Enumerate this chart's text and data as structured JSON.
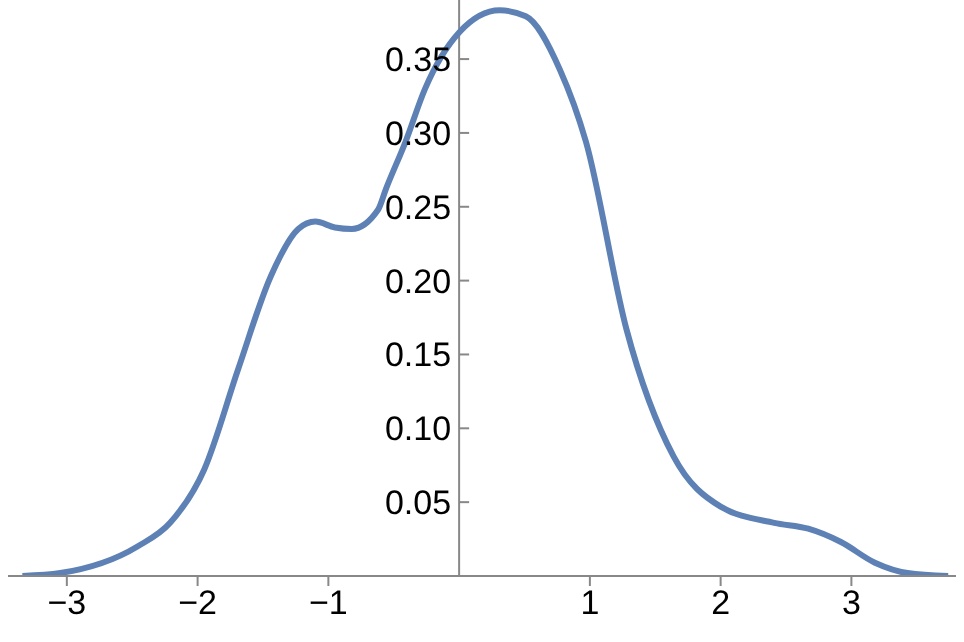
{
  "chart_data": {
    "type": "line",
    "x": [
      -3.34,
      -3.05,
      -2.46,
      -2.21,
      -1.95,
      -1.69,
      -1.44,
      -1.23,
      -1.1,
      -0.95,
      -0.82,
      -0.62,
      -0.56,
      -0.41,
      -0.26,
      0,
      0.31,
      0.51,
      0.77,
      0.97,
      1.28,
      1.64,
      2.0,
      2.41,
      2.67,
      2.92,
      3.18,
      3.43,
      3.74
    ],
    "series": [
      {
        "color": "#5e81b5",
        "values": [
          0,
          0.002,
          0.02,
          0.036,
          0.072,
          0.14,
          0.203,
          0.235,
          0.24,
          0.236,
          0.235,
          0.248,
          0.262,
          0.294,
          0.33,
          0.368,
          0.383,
          0.379,
          0.343,
          0.294,
          0.167,
          0.081,
          0.047,
          0.036,
          0.032,
          0.023,
          0.009,
          0.002,
          0
        ]
      }
    ],
    "xlim": [
      -3.45,
      3.8
    ],
    "xticks": [
      {
        "value": -3,
        "label": "−3"
      },
      {
        "value": -2,
        "label": "−2"
      },
      {
        "value": -1,
        "label": "−1"
      },
      1,
      2,
      3
    ],
    "ylim": [
      0,
      0.39
    ],
    "yticks": [
      {
        "value": 0.05,
        "label": "0.05"
      },
      {
        "value": 0.1,
        "label": "0.10"
      },
      {
        "value": 0.15,
        "label": "0.15"
      },
      {
        "value": 0.2,
        "label": "0.20"
      },
      {
        "value": 0.25,
        "label": "0.25"
      },
      {
        "value": 0.3,
        "label": "0.30"
      },
      {
        "value": 0.35,
        "label": "0.35"
      }
    ],
    "grid": false,
    "marker": "none",
    "line_style": "solid"
  }
}
